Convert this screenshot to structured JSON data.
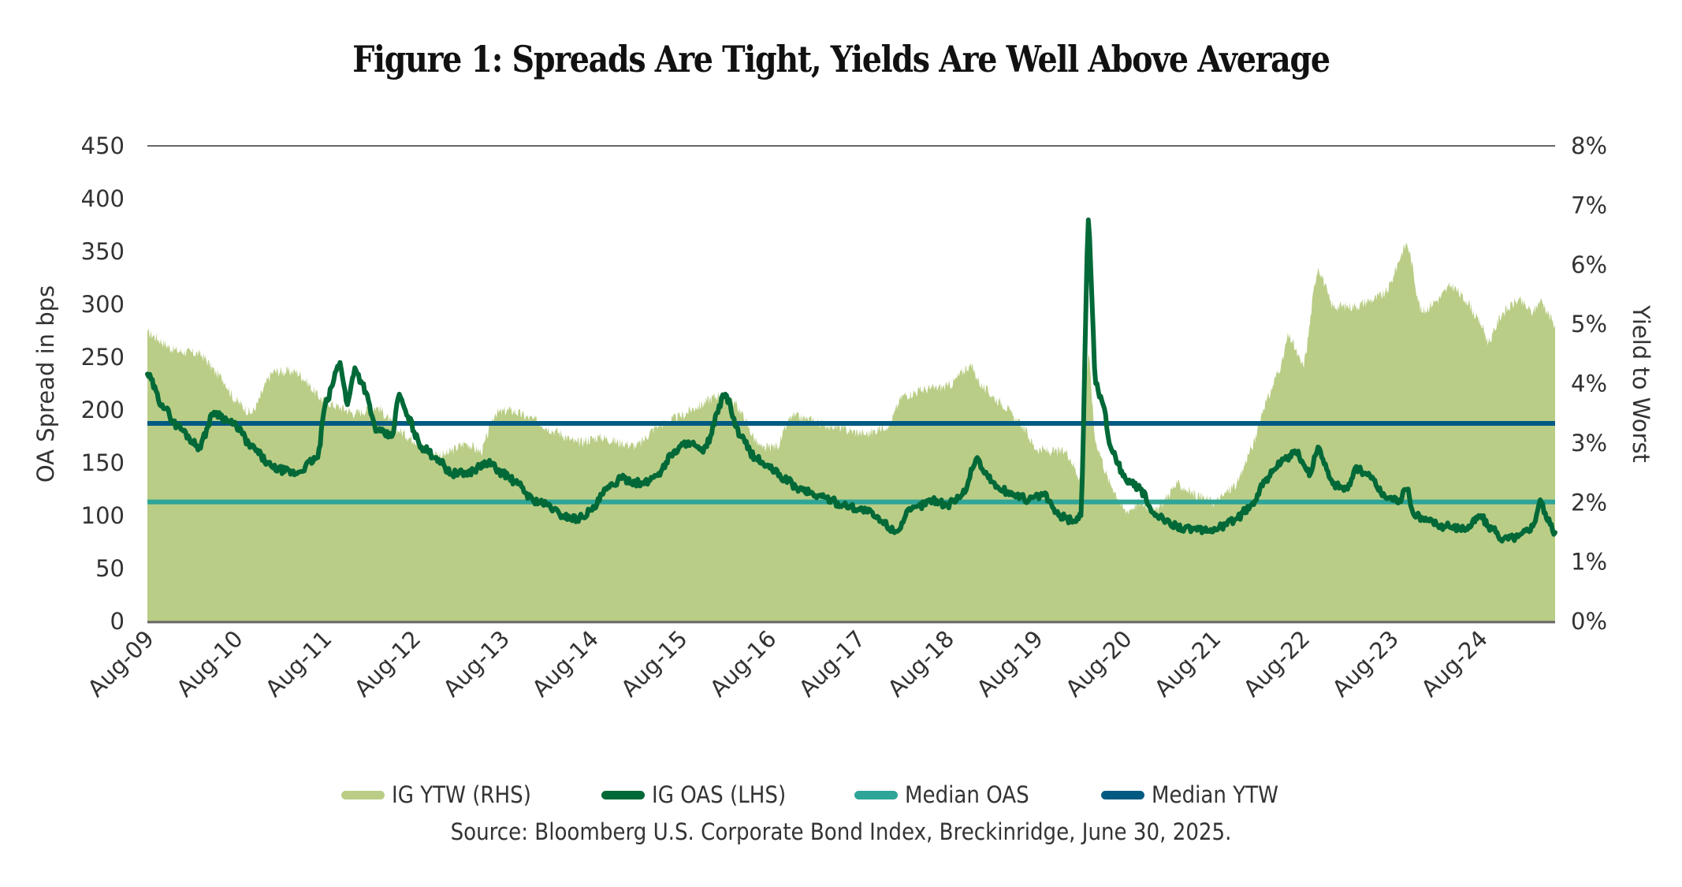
{
  "chart_data": {
    "type": "area+line",
    "title": "Figure 1: Spreads Are Tight, Yields Are Well Above Average",
    "ylabel_left": "OA Spread in bps",
    "ylabel_right": "Yield to Worst",
    "xlabel": "",
    "ylim_left": [
      0,
      450
    ],
    "ylim_right": [
      0,
      8
    ],
    "yticks_left": [
      "0",
      "50",
      "100",
      "150",
      "200",
      "250",
      "300",
      "350",
      "400",
      "450"
    ],
    "yticks_right": [
      "0%",
      "1%",
      "2%",
      "3%",
      "4%",
      "5%",
      "6%",
      "7%",
      "8%"
    ],
    "x_start": "2009-08",
    "x_end": "2025-06",
    "xtick_labels": [
      "Aug-09",
      "Aug-10",
      "Aug-11",
      "Aug-12",
      "Aug-13",
      "Aug-14",
      "Aug-15",
      "Aug-16",
      "Aug-17",
      "Aug-18",
      "Aug-19",
      "Aug-20",
      "Aug-21",
      "Aug-22",
      "Aug-23",
      "Aug-24"
    ],
    "grid": false,
    "legend_position": "bottom",
    "series": [
      {
        "name": "IG YTW (RHS)",
        "kind": "area",
        "axis": "right",
        "unit": "%",
        "color": "#b9cd86",
        "points": [
          [
            "2009-08",
            4.85
          ],
          [
            "2009-12",
            4.55
          ],
          [
            "2010-03",
            4.5
          ],
          [
            "2010-06",
            4.1
          ],
          [
            "2010-08",
            3.7
          ],
          [
            "2010-10",
            3.5
          ],
          [
            "2011-01",
            4.2
          ],
          [
            "2011-04",
            4.2
          ],
          [
            "2011-08",
            3.7
          ],
          [
            "2011-10",
            3.6
          ],
          [
            "2011-12",
            3.5
          ],
          [
            "2012-03",
            3.6
          ],
          [
            "2012-06",
            3.2
          ],
          [
            "2012-08",
            3.05
          ],
          [
            "2012-10",
            2.85
          ],
          [
            "2012-12",
            2.8
          ],
          [
            "2013-03",
            3.0
          ],
          [
            "2013-05",
            2.85
          ],
          [
            "2013-07",
            3.5
          ],
          [
            "2013-09",
            3.55
          ],
          [
            "2013-12",
            3.4
          ],
          [
            "2014-03",
            3.2
          ],
          [
            "2014-06",
            3.0
          ],
          [
            "2014-09",
            3.1
          ],
          [
            "2014-12",
            3.0
          ],
          [
            "2015-02",
            2.95
          ],
          [
            "2015-05",
            3.3
          ],
          [
            "2015-08",
            3.45
          ],
          [
            "2015-10",
            3.6
          ],
          [
            "2016-01",
            3.8
          ],
          [
            "2016-03",
            3.7
          ],
          [
            "2016-07",
            2.9
          ],
          [
            "2016-09",
            2.95
          ],
          [
            "2016-11",
            3.45
          ],
          [
            "2017-01",
            3.4
          ],
          [
            "2017-04",
            3.3
          ],
          [
            "2017-07",
            3.2
          ],
          [
            "2017-09",
            3.15
          ],
          [
            "2017-12",
            3.3
          ],
          [
            "2018-02",
            3.8
          ],
          [
            "2018-05",
            3.9
          ],
          [
            "2018-08",
            3.95
          ],
          [
            "2018-11",
            4.3
          ],
          [
            "2019-01",
            3.9
          ],
          [
            "2019-03",
            3.7
          ],
          [
            "2019-06",
            3.3
          ],
          [
            "2019-08",
            2.9
          ],
          [
            "2019-10",
            2.85
          ],
          [
            "2019-12",
            2.85
          ],
          [
            "2020-02",
            2.4
          ],
          [
            "2020-03",
            4.5
          ],
          [
            "2020-04",
            3.0
          ],
          [
            "2020-06",
            2.3
          ],
          [
            "2020-08",
            1.85
          ],
          [
            "2020-10",
            2.0
          ],
          [
            "2020-12",
            1.85
          ],
          [
            "2021-03",
            2.3
          ],
          [
            "2021-06",
            2.1
          ],
          [
            "2021-08",
            2.0
          ],
          [
            "2021-11",
            2.3
          ],
          [
            "2022-01",
            2.9
          ],
          [
            "2022-03",
            3.7
          ],
          [
            "2022-05",
            4.3
          ],
          [
            "2022-06",
            4.8
          ],
          [
            "2022-08",
            4.3
          ],
          [
            "2022-10",
            5.95
          ],
          [
            "2022-12",
            5.3
          ],
          [
            "2023-02",
            5.3
          ],
          [
            "2023-03",
            5.3
          ],
          [
            "2023-05",
            5.4
          ],
          [
            "2023-07",
            5.5
          ],
          [
            "2023-10",
            6.35
          ],
          [
            "2023-12",
            5.2
          ],
          [
            "2024-02",
            5.4
          ],
          [
            "2024-04",
            5.65
          ],
          [
            "2024-06",
            5.4
          ],
          [
            "2024-08",
            5.0
          ],
          [
            "2024-09",
            4.7
          ],
          [
            "2024-11",
            5.2
          ],
          [
            "2025-01",
            5.4
          ],
          [
            "2025-03",
            5.2
          ],
          [
            "2025-04",
            5.4
          ],
          [
            "2025-06",
            5.0
          ]
        ]
      },
      {
        "name": "IG OAS (LHS)",
        "kind": "line",
        "axis": "left",
        "unit": "bps",
        "color": "#006937",
        "points": [
          [
            "2009-08",
            234
          ],
          [
            "2009-10",
            205
          ],
          [
            "2009-12",
            185
          ],
          [
            "2010-03",
            165
          ],
          [
            "2010-05",
            198
          ],
          [
            "2010-08",
            185
          ],
          [
            "2010-10",
            165
          ],
          [
            "2011-01",
            145
          ],
          [
            "2011-04",
            140
          ],
          [
            "2011-07",
            155
          ],
          [
            "2011-08",
            205
          ],
          [
            "2011-10",
            245
          ],
          [
            "2011-11",
            205
          ],
          [
            "2011-12",
            240
          ],
          [
            "2012-01",
            225
          ],
          [
            "2012-03",
            180
          ],
          [
            "2012-05",
            175
          ],
          [
            "2012-06",
            215
          ],
          [
            "2012-07",
            195
          ],
          [
            "2012-09",
            165
          ],
          [
            "2012-11",
            155
          ],
          [
            "2013-01",
            140
          ],
          [
            "2013-03",
            140
          ],
          [
            "2013-06",
            150
          ],
          [
            "2013-08",
            140
          ],
          [
            "2013-10",
            130
          ],
          [
            "2013-12",
            115
          ],
          [
            "2014-02",
            110
          ],
          [
            "2014-04",
            100
          ],
          [
            "2014-06",
            97
          ],
          [
            "2014-08",
            105
          ],
          [
            "2014-10",
            125
          ],
          [
            "2014-12",
            135
          ],
          [
            "2015-03",
            130
          ],
          [
            "2015-05",
            140
          ],
          [
            "2015-07",
            160
          ],
          [
            "2015-09",
            170
          ],
          [
            "2015-11",
            160
          ],
          [
            "2016-02",
            215
          ],
          [
            "2016-04",
            175
          ],
          [
            "2016-06",
            155
          ],
          [
            "2016-08",
            145
          ],
          [
            "2016-10",
            135
          ],
          [
            "2016-12",
            125
          ],
          [
            "2017-03",
            118
          ],
          [
            "2017-06",
            110
          ],
          [
            "2017-09",
            105
          ],
          [
            "2017-11",
            95
          ],
          [
            "2018-01",
            85
          ],
          [
            "2018-03",
            105
          ],
          [
            "2018-06",
            115
          ],
          [
            "2018-08",
            110
          ],
          [
            "2018-10",
            120
          ],
          [
            "2018-12",
            155
          ],
          [
            "2019-01",
            140
          ],
          [
            "2019-03",
            125
          ],
          [
            "2019-05",
            120
          ],
          [
            "2019-07",
            115
          ],
          [
            "2019-09",
            120
          ],
          [
            "2019-11",
            100
          ],
          [
            "2020-01",
            95
          ],
          [
            "2020-02",
            100
          ],
          [
            "2020-03",
            380
          ],
          [
            "2020-04",
            225
          ],
          [
            "2020-05",
            205
          ],
          [
            "2020-06",
            165
          ],
          [
            "2020-08",
            135
          ],
          [
            "2020-10",
            125
          ],
          [
            "2020-12",
            100
          ],
          [
            "2021-02",
            93
          ],
          [
            "2021-04",
            88
          ],
          [
            "2021-07",
            85
          ],
          [
            "2021-09",
            90
          ],
          [
            "2021-11",
            97
          ],
          [
            "2022-01",
            110
          ],
          [
            "2022-03",
            135
          ],
          [
            "2022-05",
            150
          ],
          [
            "2022-07",
            160
          ],
          [
            "2022-09",
            140
          ],
          [
            "2022-10",
            165
          ],
          [
            "2022-12",
            130
          ],
          [
            "2023-02",
            125
          ],
          [
            "2023-03",
            145
          ],
          [
            "2023-05",
            138
          ],
          [
            "2023-07",
            118
          ],
          [
            "2023-09",
            115
          ],
          [
            "2023-10",
            125
          ],
          [
            "2023-11",
            100
          ],
          [
            "2024-01",
            95
          ],
          [
            "2024-03",
            90
          ],
          [
            "2024-06",
            88
          ],
          [
            "2024-08",
            100
          ],
          [
            "2024-09",
            90
          ],
          [
            "2024-11",
            78
          ],
          [
            "2025-01",
            80
          ],
          [
            "2025-03",
            90
          ],
          [
            "2025-04",
            115
          ],
          [
            "2025-05",
            95
          ],
          [
            "2025-06",
            84
          ]
        ]
      },
      {
        "name": "Median OAS",
        "kind": "hline",
        "axis": "left",
        "unit": "bps",
        "value": 113,
        "color": "#2ea597"
      },
      {
        "name": "Median YTW",
        "kind": "hline",
        "axis": "right",
        "unit": "%",
        "value": 3.33,
        "color": "#005a82"
      }
    ]
  },
  "legend": [
    {
      "label": "IG YTW (RHS)",
      "color": "#b9cd86"
    },
    {
      "label": "IG OAS (LHS)",
      "color": "#006937"
    },
    {
      "label": "Median OAS",
      "color": "#2ea597"
    },
    {
      "label": "Median YTW",
      "color": "#005a82"
    }
  ],
  "source": "Source: Bloomberg U.S. Corporate Bond Index, Breckinridge, June 30, 2025."
}
